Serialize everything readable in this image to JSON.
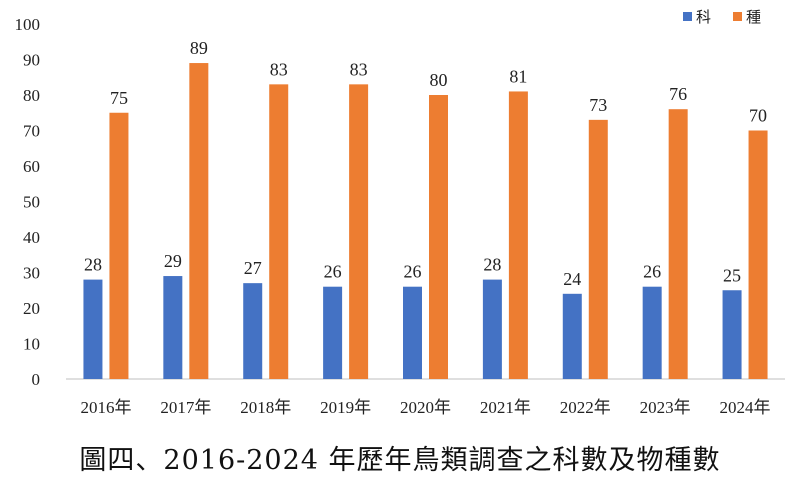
{
  "caption": "圖四、2016-2024 年歷年鳥類調查之科數及物種數",
  "chart_data": {
    "type": "bar",
    "categories": [
      "2016年",
      "2017年",
      "2018年",
      "2019年",
      "2020年",
      "2021年",
      "2022年",
      "2023年",
      "2024年"
    ],
    "series": [
      {
        "name": "科",
        "color": "#4472C4",
        "values": [
          28,
          29,
          27,
          26,
          26,
          28,
          24,
          26,
          25
        ]
      },
      {
        "name": "種",
        "color": "#ED7D31",
        "values": [
          75,
          89,
          83,
          83,
          80,
          81,
          73,
          76,
          70
        ]
      }
    ],
    "ylim": [
      0,
      100
    ],
    "yticks": [
      0,
      10,
      20,
      30,
      40,
      50,
      60,
      70,
      80,
      90,
      100
    ],
    "grid": false,
    "legend_position": "top-right",
    "data_labels": true
  }
}
